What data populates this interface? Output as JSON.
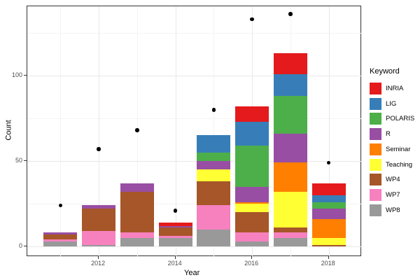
{
  "chart_data": {
    "type": "bar",
    "subtype": "stacked-bars-with-points",
    "title": "",
    "xlabel": "Year",
    "ylabel": "Count",
    "legend_title": "Keyword",
    "legend_position": "right",
    "grid": true,
    "x": [
      2011,
      2012,
      2013,
      2014,
      2015,
      2016,
      2017,
      2018
    ],
    "x_tick_labels": [
      "2012",
      "2014",
      "2016",
      "2018"
    ],
    "x_major_ticks": [
      2012,
      2014,
      2016,
      2018
    ],
    "x_minor_ticks": [
      2011,
      2013,
      2015,
      2017
    ],
    "y_tick_labels": [
      "0",
      "50",
      "100"
    ],
    "y_major_ticks": [
      0,
      50,
      100
    ],
    "y_minor_ticks": [
      25,
      75,
      125
    ],
    "ylim": [
      -7,
      141
    ],
    "stack_order_bottom_to_top": [
      "WP8",
      "WP7",
      "WP4",
      "Teaching",
      "Seminar",
      "R",
      "POLARIS",
      "LIG",
      "INRIA"
    ],
    "series": [
      {
        "name": "INRIA",
        "color": "#E41A1C",
        "values": [
          0,
          0,
          0,
          2,
          0,
          9,
          12,
          7
        ]
      },
      {
        "name": "LIG",
        "color": "#377EB8",
        "values": [
          0,
          0,
          0,
          0,
          10,
          14,
          13,
          4
        ]
      },
      {
        "name": "POLARIS",
        "color": "#4DAF4A",
        "values": [
          0,
          0,
          0,
          0,
          5,
          24,
          22,
          4
        ]
      },
      {
        "name": "R",
        "color": "#984EA3",
        "values": [
          1,
          2,
          5,
          1,
          5,
          9,
          17,
          6
        ]
      },
      {
        "name": "Seminar",
        "color": "#FF7F00",
        "values": [
          0,
          0,
          0,
          0,
          0,
          1,
          17,
          11
        ]
      },
      {
        "name": "Teaching",
        "color": "#FFFF33",
        "values": [
          0,
          0,
          0,
          0,
          7,
          5,
          21,
          4
        ]
      },
      {
        "name": "WP4",
        "color": "#A65628",
        "values": [
          3,
          13,
          24,
          5,
          14,
          12,
          3,
          1
        ]
      },
      {
        "name": "WP7",
        "color": "#F781BF",
        "values": [
          1,
          8,
          3,
          1,
          14,
          5,
          3,
          0
        ]
      },
      {
        "name": "WP8",
        "color": "#999999",
        "values": [
          3,
          1,
          5,
          5,
          10,
          3,
          5,
          0
        ]
      }
    ],
    "bar_totals": [
      8,
      24,
      37,
      14,
      65,
      82,
      113,
      37
    ],
    "points_series": {
      "name": "total-points",
      "values": [
        24,
        57,
        68,
        21,
        80,
        133,
        136,
        49
      ]
    },
    "colors": {
      "point": "#000000",
      "major_grid": "#E8E8E8",
      "minor_grid": "#F4F4F4",
      "panel_border": "#333333",
      "tick_text": "#4D4D4D",
      "background": "#FFFFFF"
    }
  }
}
